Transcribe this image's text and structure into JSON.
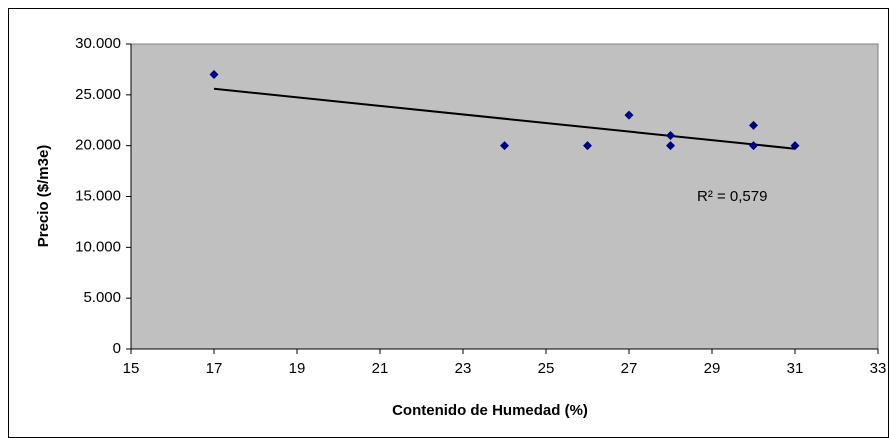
{
  "chart_data": {
    "type": "scatter",
    "x_label": "Contenido de Humedad (%)",
    "y_label": "Precio ($/m3e)",
    "series": [
      {
        "color": "#000080",
        "x": [
          17,
          24,
          26,
          27,
          28,
          28,
          30,
          30,
          31
        ],
        "values": [
          27000,
          20000,
          20000,
          23000,
          21000,
          20000,
          22000,
          20000,
          20000
        ]
      }
    ],
    "trendline": {
      "color": "#000000",
      "x": [
        17,
        31
      ],
      "values": [
        25600,
        19700
      ]
    },
    "annotation": "R² = 0,579",
    "xlim": [
      15,
      33
    ],
    "xticks": [
      15,
      17,
      19,
      21,
      23,
      25,
      27,
      29,
      31,
      33
    ],
    "ylim": [
      0,
      30000
    ],
    "yticks": [
      0,
      {
        "value": 5000,
        "label": "5.000"
      },
      {
        "value": 10000,
        "label": "10.000"
      },
      {
        "value": 15000,
        "label": "15.000"
      },
      {
        "value": 20000,
        "label": "20.000"
      },
      {
        "value": 25000,
        "label": "25.000"
      },
      {
        "value": 30000,
        "label": "30.000"
      }
    ],
    "plot_color": "#c0c0c0"
  }
}
